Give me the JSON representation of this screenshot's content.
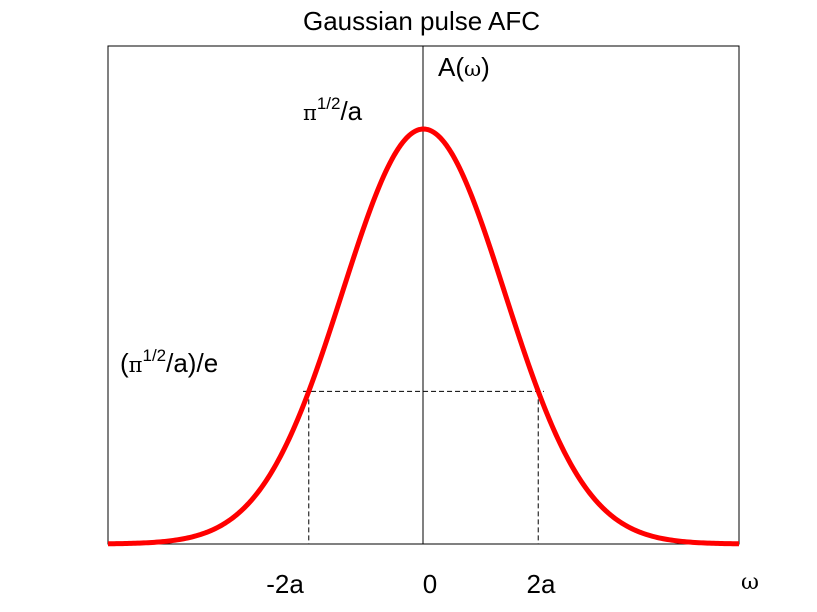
{
  "chart_data": {
    "type": "line",
    "title": "Gaussian pulse AFC",
    "y_axis_label": {
      "pre": "A(",
      "greek": "ω",
      "post": ")"
    },
    "x_axis_label": "ω",
    "peak_label": {
      "base": "π",
      "sup": "1/2",
      "rest": "/a"
    },
    "level_label": {
      "open": "(",
      "base": "π",
      "sup": "1/2",
      "rest": "/a)/e"
    },
    "x_ticks": [
      {
        "value": -2,
        "label": "-2a"
      },
      {
        "value": 0,
        "label": "0"
      },
      {
        "value": 2,
        "label": "2a"
      }
    ],
    "series": [
      {
        "function": "exp(-x^2/4)",
        "peak": 1,
        "color": "#ff0000"
      }
    ],
    "level": {
      "x": 2,
      "y": 0.3679
    },
    "xlim": [
      -5.5,
      5.5
    ],
    "ylim": [
      0,
      1.2
    ],
    "grid": false
  }
}
